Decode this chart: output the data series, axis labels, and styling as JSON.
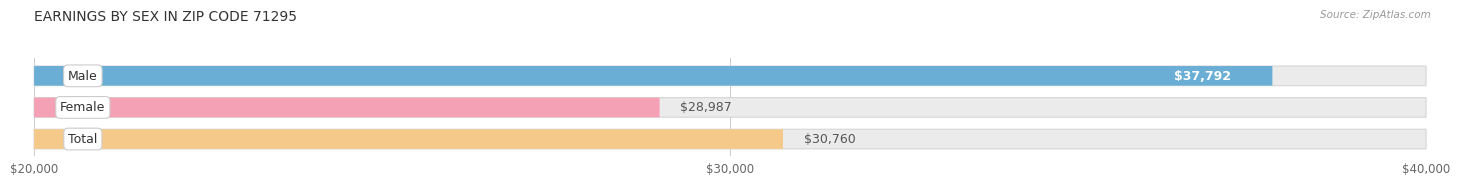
{
  "title": "EARNINGS BY SEX IN ZIP CODE 71295",
  "source": "Source: ZipAtlas.com",
  "categories": [
    "Male",
    "Female",
    "Total"
  ],
  "values": [
    37792,
    28987,
    30760
  ],
  "bar_colors": [
    "#6aaed6",
    "#f4a0b5",
    "#f5c98a"
  ],
  "bar_bg_color": "#e8e8e8",
  "value_labels": [
    "$37,792",
    "$28,987",
    "$30,760"
  ],
  "xmin": 20000,
  "xmax": 40000,
  "xticks": [
    20000,
    30000,
    40000
  ],
  "xtick_labels": [
    "$20,000",
    "$30,000",
    "$40,000"
  ],
  "title_fontsize": 10,
  "tick_fontsize": 8.5,
  "bar_label_fontsize": 9,
  "value_fontsize": 9,
  "background_color": "#ffffff"
}
